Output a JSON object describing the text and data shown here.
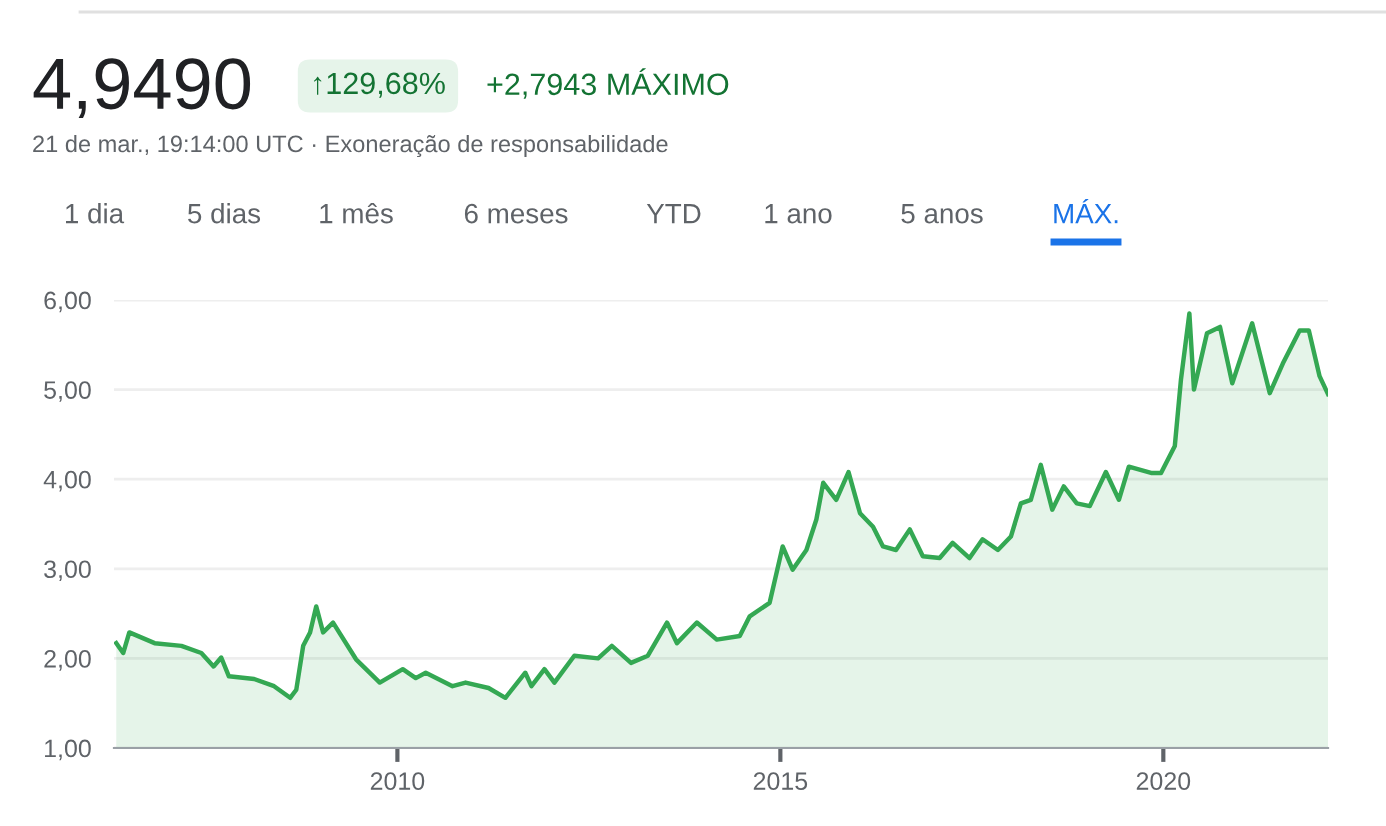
{
  "chart_data": {
    "type": "area",
    "title": "4,9490",
    "subtitle": "21 de mar., 19:14:00 UTC · Exoneração de responsabilidade",
    "annotations": [
      "↑129,68%",
      "+2,7943 MÁXIMO",
      "1 dia",
      "5 dias",
      "1 mês",
      "6 meses",
      "YTD",
      "1 ano",
      "5 anos",
      "MÁX."
    ],
    "series": [
      {
        "color": "#34a853",
        "x": [
          2006.33,
          2006.42,
          2006.5,
          2006.83,
          2007.18,
          2007.44,
          2007.6,
          2007.7,
          2007.8,
          2008.13,
          2008.39,
          2008.6,
          2008.68,
          2008.77,
          2008.86,
          2008.94,
          2009.03,
          2009.16,
          2009.46,
          2009.77,
          2010.07,
          2010.24,
          2010.37,
          2010.72,
          2010.89,
          2011.19,
          2011.41,
          2011.67,
          2011.75,
          2011.92,
          2012.05,
          2012.31,
          2012.62,
          2012.8,
          2013.05,
          2013.27,
          2013.52,
          2013.65,
          2013.91,
          2014.17,
          2014.47,
          2014.6,
          2014.86,
          2015.03,
          2015.16,
          2015.34,
          2015.47,
          2015.56,
          2015.73,
          2015.89,
          2016.04,
          2016.21,
          2016.34,
          2016.51,
          2016.69,
          2016.86,
          2017.08,
          2017.25,
          2017.47,
          2017.64,
          2017.84,
          2018.01,
          2018.14,
          2018.27,
          2018.4,
          2018.55,
          2018.7,
          2018.87,
          2019.04,
          2019.25,
          2019.42,
          2019.55,
          2019.84,
          2019.97,
          2020.15,
          2020.23,
          2020.34,
          2020.4,
          2020.57,
          2020.74,
          2020.9,
          2021.16,
          2021.39,
          2021.56,
          2021.78,
          2021.9,
          2022.04,
          2022.15
        ],
        "values": [
          2.17,
          2.06,
          2.29,
          2.17,
          2.14,
          2.06,
          1.91,
          2.01,
          1.8,
          1.77,
          1.69,
          1.56,
          1.65,
          2.14,
          2.29,
          2.58,
          2.29,
          2.4,
          1.99,
          1.73,
          1.88,
          1.78,
          1.84,
          1.69,
          1.73,
          1.67,
          1.56,
          1.84,
          1.69,
          1.88,
          1.73,
          2.03,
          2.0,
          2.14,
          1.95,
          2.03,
          2.4,
          2.17,
          2.4,
          2.21,
          2.25,
          2.47,
          2.62,
          3.25,
          2.99,
          3.21,
          3.55,
          3.96,
          3.77,
          4.08,
          3.62,
          3.47,
          3.25,
          3.21,
          3.44,
          3.14,
          3.12,
          3.29,
          3.12,
          3.33,
          3.21,
          3.36,
          3.73,
          3.77,
          4.16,
          3.66,
          3.92,
          3.73,
          3.7,
          4.08,
          3.77,
          4.14,
          4.07,
          4.07,
          4.37,
          5.11,
          5.85,
          5.0,
          5.63,
          5.7,
          5.07,
          5.74,
          4.96,
          5.29,
          5.66,
          5.66,
          5.15,
          4.949
        ]
      }
    ],
    "xlim": [
      2006.3,
      2022.15
    ],
    "xticks": [
      2010,
      2015,
      2020
    ],
    "ylim": [
      1,
      6
    ],
    "yticks": [
      {
        "value": 1,
        "label": "1,00"
      },
      {
        "value": 2,
        "label": "2,00"
      },
      {
        "value": 3,
        "label": "3,00"
      },
      {
        "value": 4,
        "label": "4,00"
      },
      {
        "value": 5,
        "label": "5,00"
      },
      {
        "value": 6,
        "label": "6,00"
      }
    ],
    "grid": "y"
  }
}
